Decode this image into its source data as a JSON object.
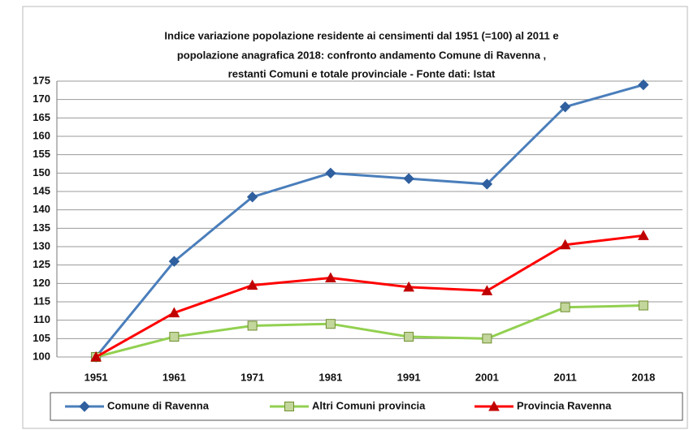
{
  "chart_data": {
    "type": "line",
    "title": [
      "Indice variazione popolazione residente ai censimenti dal 1951 (=100) al 2011 e",
      "popolazione anagrafica 2018:  confronto andamento Comune di Ravenna ,",
      "restanti Comuni  e totale provinciale - Fonte dati: Istat"
    ],
    "categories": [
      "1951",
      "1961",
      "1971",
      "1981",
      "1991",
      "2001",
      "2011",
      "2018"
    ],
    "series": [
      {
        "name": "Comune  di Ravenna",
        "color": "#4a7ebb",
        "marker": "diamond",
        "marker_color": "#2f5f9e",
        "values": [
          100,
          126,
          143.5,
          150,
          148.5,
          147,
          168,
          174
        ]
      },
      {
        "name": "Altri Comuni provincia",
        "color": "#92d050",
        "marker": "square",
        "marker_color": "#c3d69b",
        "values": [
          100,
          105.5,
          108.5,
          109,
          105.5,
          105,
          113.5,
          114
        ]
      },
      {
        "name": "Provincia Ravenna",
        "color": "#ff0000",
        "marker": "triangle",
        "marker_color": "#c00000",
        "values": [
          100,
          112,
          119.5,
          121.5,
          119,
          118,
          130.5,
          133
        ]
      }
    ],
    "ylim": [
      100,
      175
    ],
    "yticks": [
      100,
      105,
      110,
      115,
      120,
      125,
      130,
      135,
      140,
      145,
      150,
      155,
      160,
      165,
      170,
      175
    ],
    "grid": true,
    "legend": "bottom"
  }
}
